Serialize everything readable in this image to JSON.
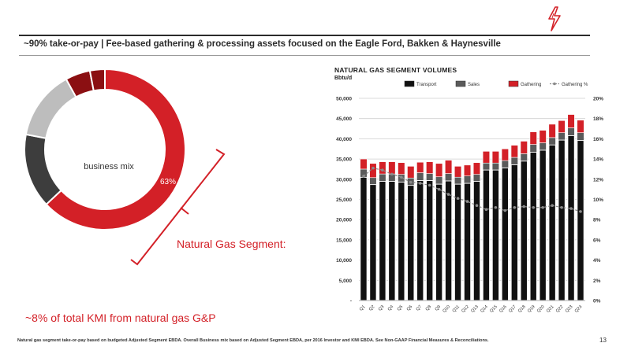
{
  "colors": {
    "accent": "#d32027",
    "dark_red": "#8b0f12",
    "black": "#111111",
    "dark_gray": "#4a4a4a",
    "light_gray": "#bdbdbd"
  },
  "icons": {
    "logo": "red-lightning-logo"
  },
  "header": {
    "title": "~90% take-or-pay | Fee-based gathering & processing assets focused on the Eagle Ford, Bakken & Haynesville"
  },
  "donut": {
    "center_label": "business mix",
    "slices": [
      {
        "value": 63,
        "color": "#d32027",
        "label": "63%"
      },
      {
        "value": 15,
        "color": "#3d3d3d",
        "label": ""
      },
      {
        "value": 14,
        "color": "#bdbdbd",
        "label": ""
      },
      {
        "value": 5,
        "color": "#8b0f12",
        "label": ""
      },
      {
        "value": 3,
        "color": "#8b0f12",
        "label": ""
      }
    ]
  },
  "segment_label": "Natural Gas Segment:",
  "kmi_label": "~8% of total KMI from natural gas G&P",
  "chart_data": {
    "type": "bar",
    "title": "NATURAL GAS SEGMENT VOLUMES",
    "unit_label": "Bbtu/d",
    "legend": [
      "Transport",
      "Sales",
      "Gathering",
      "Gathering %"
    ],
    "categories": [
      "Q1",
      "Q2",
      "Q3",
      "Q4",
      "Q5",
      "Q6",
      "Q7",
      "Q8",
      "Q9",
      "Q10",
      "Q11",
      "Q12",
      "Q13",
      "Q14",
      "Q15",
      "Q16",
      "Q17",
      "Q18",
      "Q19",
      "Q20",
      "Q21",
      "Q22",
      "Q23",
      "Q24"
    ],
    "series": [
      {
        "name": "Transport",
        "values": [
          30500,
          28700,
          29500,
          29500,
          29300,
          28500,
          29700,
          29700,
          28800,
          29600,
          28800,
          29000,
          29500,
          32300,
          32300,
          32800,
          33600,
          34500,
          36700,
          37200,
          38500,
          39700,
          40800,
          39600
        ]
      },
      {
        "name": "Sales",
        "values": [
          2000,
          1700,
          1800,
          1800,
          1900,
          1800,
          1900,
          1700,
          1800,
          1800,
          1700,
          1800,
          1700,
          1700,
          1700,
          1800,
          1800,
          1800,
          1900,
          1800,
          1800,
          1800,
          1900,
          1900
        ]
      },
      {
        "name": "Gathering",
        "values": [
          2500,
          3500,
          3000,
          3000,
          2900,
          2900,
          2600,
          2900,
          3300,
          3300,
          2700,
          2700,
          2900,
          2900,
          2900,
          2900,
          3000,
          3100,
          3100,
          3100,
          3300,
          3000,
          3300,
          3100
        ]
      },
      {
        "name": "Gathering %",
        "values": [
          12.3,
          13.1,
          12.9,
          12.5,
          12.2,
          11.7,
          11.6,
          11.4,
          11.0,
          10.5,
          10.1,
          9.8,
          9.4,
          9.0,
          9.2,
          8.9,
          9.2,
          9.3,
          9.2,
          9.2,
          9.4,
          9.2,
          9.1,
          8.8
        ]
      }
    ],
    "y_ticks": [
      "-",
      "5,000",
      "10,000",
      "15,000",
      "20,000",
      "25,000",
      "30,000",
      "35,000",
      "40,000",
      "45,000",
      "50,000"
    ],
    "ylim": [
      0,
      50000
    ],
    "y2_ticks": [
      "0%",
      "2%",
      "4%",
      "6%",
      "8%",
      "10%",
      "12%",
      "14%",
      "16%",
      "18%",
      "20%"
    ],
    "y2lim": [
      0,
      20
    ],
    "grid": true,
    "legend_position": "top"
  },
  "footnote": "Natural gas segment take-or-pay based on budgeted Adjusted Segment EBDA. Overall Business mix based on Adjusted Segment EBDA, per 2016 Investor and KMI EBDA. See Non-GAAP Financial Measures & Reconciliations.",
  "page_number": "13"
}
